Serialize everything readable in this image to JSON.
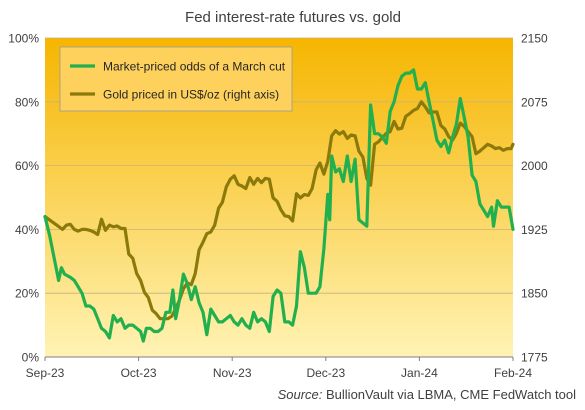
{
  "chart_data": {
    "type": "line",
    "title": "Fed interest-rate futures vs. gold",
    "source_label": "Source:",
    "source_text": " BullionVault via LBMA, CME FedWatch tool",
    "x_ticks": [
      "Sep-23",
      "Oct-23",
      "Nov-23",
      "Dec-23",
      "Jan-24",
      "Feb-24"
    ],
    "left_axis": {
      "ticks": [
        "0%",
        "20%",
        "40%",
        "60%",
        "80%",
        "100%"
      ],
      "ylim": [
        0,
        100
      ]
    },
    "right_axis": {
      "ticks": [
        "1775",
        "1850",
        "1925",
        "2000",
        "2075",
        "2150"
      ],
      "ylim": [
        1775,
        2150
      ]
    },
    "grid": "horizontal",
    "legend_position": "top-left",
    "background_gradient": [
      "#f6b500",
      "#fff3b5"
    ],
    "series": [
      {
        "name": "Market-priced odds of a March cut",
        "axis": "left",
        "color": "#22b04e",
        "points": [
          [
            0.0,
            44
          ],
          [
            1.2,
            38
          ],
          [
            2.5,
            30
          ],
          [
            3.5,
            24
          ],
          [
            4.2,
            28
          ],
          [
            5.0,
            26
          ],
          [
            6.5,
            25
          ],
          [
            7.5,
            24
          ],
          [
            8.5,
            22
          ],
          [
            9.5,
            20
          ],
          [
            10.5,
            16
          ],
          [
            11.5,
            16
          ],
          [
            12.5,
            15
          ],
          [
            13.5,
            12
          ],
          [
            14.5,
            9
          ],
          [
            15.5,
            8
          ],
          [
            16.5,
            6
          ],
          [
            17.5,
            13
          ],
          [
            18.5,
            11
          ],
          [
            19.5,
            12
          ],
          [
            20.5,
            9
          ],
          [
            21.5,
            10
          ],
          [
            22.5,
            10
          ],
          [
            23.5,
            9
          ],
          [
            24.5,
            8
          ],
          [
            25.2,
            5
          ],
          [
            26.0,
            9
          ],
          [
            27.0,
            9
          ],
          [
            28.0,
            8
          ],
          [
            29.0,
            8
          ],
          [
            30.0,
            9
          ],
          [
            31.0,
            14
          ],
          [
            32.0,
            14
          ],
          [
            32.8,
            21
          ],
          [
            33.5,
            12
          ],
          [
            34.5,
            18
          ],
          [
            35.5,
            26
          ],
          [
            36.5,
            23
          ],
          [
            37.5,
            18
          ],
          [
            38.5,
            22
          ],
          [
            39.5,
            17
          ],
          [
            40.5,
            14
          ],
          [
            41.5,
            7
          ],
          [
            42.5,
            15
          ],
          [
            43.5,
            13
          ],
          [
            44.5,
            11
          ],
          [
            45.5,
            11
          ],
          [
            46.5,
            12
          ],
          [
            47.5,
            13
          ],
          [
            48.5,
            11
          ],
          [
            49.5,
            10
          ],
          [
            50.5,
            12
          ],
          [
            51.5,
            10
          ],
          [
            52.5,
            9
          ],
          [
            53.5,
            14
          ],
          [
            54.5,
            11
          ],
          [
            55.5,
            12
          ],
          [
            56.5,
            11
          ],
          [
            57.5,
            8
          ],
          [
            58.5,
            19
          ],
          [
            59.5,
            21
          ],
          [
            60.5,
            20
          ],
          [
            61.5,
            11
          ],
          [
            62.5,
            11
          ],
          [
            63.5,
            10
          ],
          [
            64.5,
            16
          ],
          [
            65.5,
            33
          ],
          [
            66.5,
            28
          ],
          [
            67.5,
            20
          ],
          [
            68.5,
            20
          ],
          [
            69.5,
            20
          ],
          [
            70.5,
            22
          ],
          [
            71.5,
            34
          ],
          [
            72.5,
            51
          ],
          [
            73.0,
            43
          ],
          [
            73.5,
            63
          ],
          [
            74.5,
            58
          ],
          [
            75.5,
            59
          ],
          [
            76.5,
            55
          ],
          [
            77.5,
            63
          ],
          [
            78.5,
            55
          ],
          [
            79.5,
            62
          ],
          [
            80.5,
            43
          ],
          [
            81.5,
            42
          ],
          [
            82.5,
            41
          ],
          [
            83.5,
            79
          ],
          [
            84.5,
            70
          ],
          [
            85.5,
            70
          ],
          [
            86.5,
            69
          ],
          [
            87.5,
            67
          ],
          [
            88.5,
            77
          ],
          [
            89.5,
            80
          ],
          [
            90.5,
            85
          ],
          [
            91.5,
            88
          ],
          [
            92.5,
            89
          ],
          [
            93.5,
            89
          ],
          [
            94.5,
            90
          ],
          [
            95.5,
            84
          ],
          [
            96.5,
            84
          ],
          [
            97.5,
            86
          ],
          [
            98.5,
            80
          ],
          [
            99.5,
            74
          ],
          [
            100.5,
            68
          ],
          [
            101.5,
            66
          ],
          [
            102.5,
            68
          ],
          [
            103.5,
            64
          ],
          [
            104.5,
            69
          ],
          [
            105.5,
            73
          ],
          [
            106.5,
            81
          ],
          [
            107.5,
            75
          ],
          [
            108.5,
            69
          ],
          [
            109.5,
            57
          ],
          [
            110.5,
            55
          ],
          [
            111.5,
            48
          ],
          [
            112.5,
            46
          ],
          [
            113.5,
            44
          ],
          [
            114.5,
            47
          ],
          [
            115.0,
            41
          ],
          [
            116.0,
            49
          ],
          [
            117.0,
            47
          ],
          [
            118.0,
            47
          ],
          [
            119.0,
            47
          ],
          [
            120.0,
            40
          ]
        ]
      },
      {
        "name": "Gold priced in US$/oz (right axis)",
        "axis": "right",
        "color": "#8b7a0a",
        "points": [
          [
            0.0,
            1940
          ],
          [
            1.5,
            1935
          ],
          [
            3.0,
            1930
          ],
          [
            4.5,
            1925
          ],
          [
            5.5,
            1930
          ],
          [
            6.5,
            1931
          ],
          [
            7.5,
            1925
          ],
          [
            8.5,
            1923
          ],
          [
            9.5,
            1925
          ],
          [
            10.5,
            1925
          ],
          [
            11.5,
            1924
          ],
          [
            12.5,
            1922
          ],
          [
            13.5,
            1919
          ],
          [
            14.5,
            1937
          ],
          [
            15.5,
            1924
          ],
          [
            16.5,
            1930
          ],
          [
            17.5,
            1928
          ],
          [
            18.5,
            1929
          ],
          [
            19.5,
            1926
          ],
          [
            20.5,
            1926
          ],
          [
            21.5,
            1896
          ],
          [
            22.5,
            1891
          ],
          [
            23.5,
            1873
          ],
          [
            24.5,
            1865
          ],
          [
            25.5,
            1851
          ],
          [
            26.5,
            1845
          ],
          [
            27.5,
            1830
          ],
          [
            28.5,
            1826
          ],
          [
            29.5,
            1820
          ],
          [
            30.5,
            1820
          ],
          [
            31.5,
            1820
          ],
          [
            32.5,
            1823
          ],
          [
            33.5,
            1832
          ],
          [
            34.5,
            1842
          ],
          [
            35.5,
            1855
          ],
          [
            36.5,
            1862
          ],
          [
            37.5,
            1860
          ],
          [
            38.5,
            1873
          ],
          [
            39.5,
            1901
          ],
          [
            40.5,
            1910
          ],
          [
            41.5,
            1920
          ],
          [
            42.5,
            1922
          ],
          [
            43.5,
            1930
          ],
          [
            44.5,
            1950
          ],
          [
            45.5,
            1957
          ],
          [
            46.5,
            1975
          ],
          [
            47.5,
            1984
          ],
          [
            48.5,
            1988
          ],
          [
            49.5,
            1978
          ],
          [
            50.5,
            1976
          ],
          [
            51.5,
            1973
          ],
          [
            52.5,
            1986
          ],
          [
            53.5,
            1978
          ],
          [
            54.5,
            1985
          ],
          [
            55.5,
            1980
          ],
          [
            56.5,
            1985
          ],
          [
            57.5,
            1984
          ],
          [
            58.5,
            1962
          ],
          [
            59.5,
            1958
          ],
          [
            60.5,
            1948
          ],
          [
            61.5,
            1941
          ],
          [
            62.5,
            1940
          ],
          [
            63.5,
            1935
          ],
          [
            64.5,
            1967
          ],
          [
            65.5,
            1962
          ],
          [
            66.5,
            1966
          ],
          [
            67.5,
            1965
          ],
          [
            68.5,
            1973
          ],
          [
            69.5,
            1995
          ],
          [
            70.5,
            2003
          ],
          [
            71.5,
            1990
          ],
          [
            72.5,
            2005
          ],
          [
            73.5,
            2035
          ],
          [
            74.5,
            2041
          ],
          [
            75.5,
            2037
          ],
          [
            76.5,
            2040
          ],
          [
            77.5,
            2032
          ],
          [
            78.5,
            2036
          ],
          [
            79.5,
            2035
          ],
          [
            80.5,
            2017
          ],
          [
            81.5,
            2010
          ],
          [
            82.5,
            1985
          ],
          [
            83.5,
            1977
          ],
          [
            84.5,
            2025
          ],
          [
            85.5,
            2028
          ],
          [
            86.5,
            2033
          ],
          [
            87.5,
            2038
          ],
          [
            88.5,
            2040
          ],
          [
            89.5,
            2052
          ],
          [
            90.5,
            2043
          ],
          [
            91.5,
            2044
          ],
          [
            92.5,
            2058
          ],
          [
            93.5,
            2061
          ],
          [
            94.5,
            2065
          ],
          [
            95.5,
            2067
          ],
          [
            96.5,
            2075
          ],
          [
            97.5,
            2069
          ],
          [
            98.5,
            2062
          ],
          [
            99.5,
            2063
          ],
          [
            100.5,
            2063
          ],
          [
            101.5,
            2047
          ],
          [
            102.5,
            2043
          ],
          [
            103.5,
            2034
          ],
          [
            104.5,
            2030
          ],
          [
            105.5,
            2038
          ],
          [
            106.5,
            2050
          ],
          [
            107.5,
            2046
          ],
          [
            108.5,
            2040
          ],
          [
            109.5,
            2034
          ],
          [
            110.5,
            2014
          ],
          [
            111.5,
            2017
          ],
          [
            112.5,
            2021
          ],
          [
            113.5,
            2025
          ],
          [
            114.5,
            2023
          ],
          [
            115.5,
            2020
          ],
          [
            116.5,
            2021
          ],
          [
            117.5,
            2018
          ],
          [
            118.5,
            2020
          ],
          [
            119.5,
            2020
          ],
          [
            120.0,
            2025
          ]
        ]
      }
    ]
  }
}
